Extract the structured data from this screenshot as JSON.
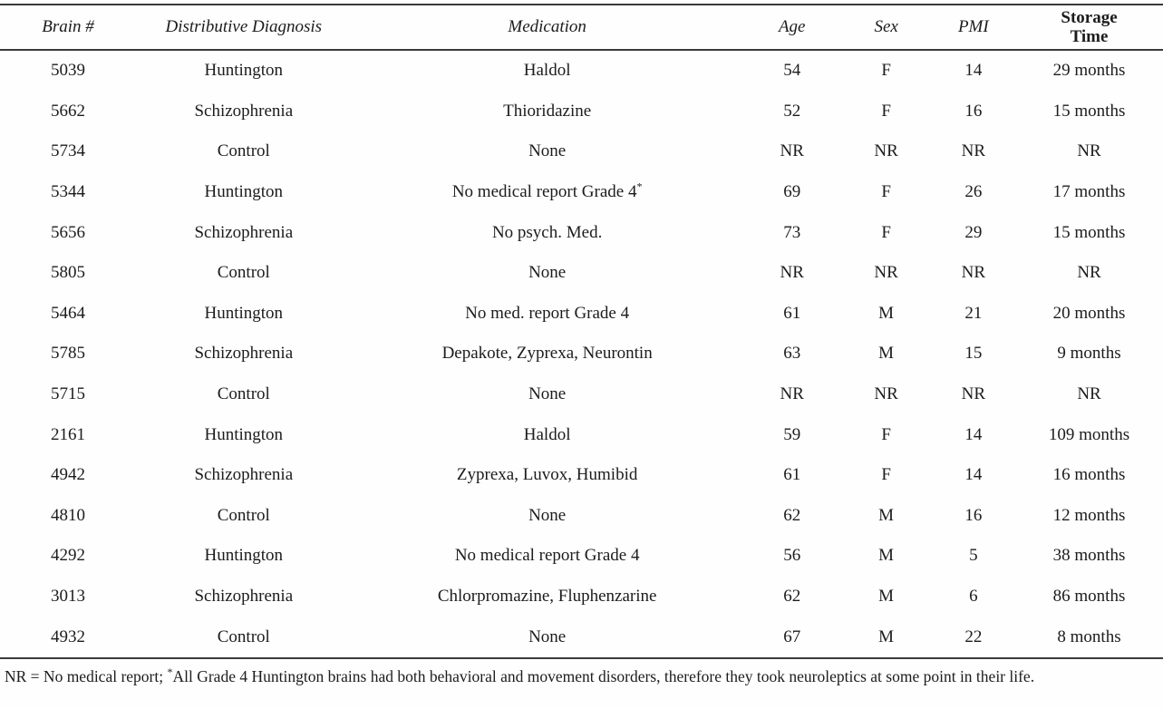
{
  "table": {
    "columns": [
      {
        "key": "brain",
        "label": "Brain #",
        "style": "italic"
      },
      {
        "key": "diagnosis",
        "label": "Distributive Diagnosis",
        "style": "italic"
      },
      {
        "key": "medication",
        "label": "Medication",
        "style": "italic"
      },
      {
        "key": "age",
        "label": "Age",
        "style": "italic"
      },
      {
        "key": "sex",
        "label": "Sex",
        "style": "italic"
      },
      {
        "key": "pmi",
        "label": "PMI",
        "style": "italic"
      },
      {
        "key": "storage",
        "label": "Storage Time",
        "style": "bold"
      }
    ],
    "rows": [
      {
        "brain": "5039",
        "diagnosis": "Huntington",
        "medication": "Haldol",
        "medication_sup": "",
        "age": "54",
        "sex": "F",
        "pmi": "14",
        "storage": "29 months"
      },
      {
        "brain": "5662",
        "diagnosis": "Schizophrenia",
        "medication": "Thioridazine",
        "medication_sup": "",
        "age": "52",
        "sex": "F",
        "pmi": "16",
        "storage": "15 months"
      },
      {
        "brain": "5734",
        "diagnosis": "Control",
        "medication": "None",
        "medication_sup": "",
        "age": "NR",
        "sex": "NR",
        "pmi": "NR",
        "storage": "NR"
      },
      {
        "brain": "5344",
        "diagnosis": "Huntington",
        "medication": "No medical report Grade 4",
        "medication_sup": "*",
        "age": "69",
        "sex": "F",
        "pmi": "26",
        "storage": "17 months"
      },
      {
        "brain": "5656",
        "diagnosis": "Schizophrenia",
        "medication": "No psych. Med.",
        "medication_sup": "",
        "age": "73",
        "sex": "F",
        "pmi": "29",
        "storage": "15 months"
      },
      {
        "brain": "5805",
        "diagnosis": "Control",
        "medication": "None",
        "medication_sup": "",
        "age": "NR",
        "sex": "NR",
        "pmi": "NR",
        "storage": "NR"
      },
      {
        "brain": "5464",
        "diagnosis": "Huntington",
        "medication": "No med. report Grade 4",
        "medication_sup": "",
        "age": "61",
        "sex": "M",
        "pmi": "21",
        "storage": "20 months"
      },
      {
        "brain": "5785",
        "diagnosis": "Schizophrenia",
        "medication": "Depakote, Zyprexa, Neurontin",
        "medication_sup": "",
        "age": "63",
        "sex": "M",
        "pmi": "15",
        "storage": "9 months"
      },
      {
        "brain": "5715",
        "diagnosis": "Control",
        "medication": "None",
        "medication_sup": "",
        "age": "NR",
        "sex": "NR",
        "pmi": "NR",
        "storage": "NR"
      },
      {
        "brain": "2161",
        "diagnosis": "Huntington",
        "medication": "Haldol",
        "medication_sup": "",
        "age": "59",
        "sex": "F",
        "pmi": "14",
        "storage": "109 months"
      },
      {
        "brain": "4942",
        "diagnosis": "Schizophrenia",
        "medication": "Zyprexa, Luvox, Humibid",
        "medication_sup": "",
        "age": "61",
        "sex": "F",
        "pmi": "14",
        "storage": "16 months"
      },
      {
        "brain": "4810",
        "diagnosis": "Control",
        "medication": "None",
        "medication_sup": "",
        "age": "62",
        "sex": "M",
        "pmi": "16",
        "storage": "12 months"
      },
      {
        "brain": "4292",
        "diagnosis": "Huntington",
        "medication": "No medical report Grade 4",
        "medication_sup": "",
        "age": "56",
        "sex": "M",
        "pmi": "5",
        "storage": "38 months"
      },
      {
        "brain": "3013",
        "diagnosis": "Schizophrenia",
        "medication": "Chlorpromazine, Fluphenzarine",
        "medication_sup": "",
        "age": "62",
        "sex": "M",
        "pmi": "6",
        "storage": "86 months"
      },
      {
        "brain": "4932",
        "diagnosis": "Control",
        "medication": "None",
        "medication_sup": "",
        "age": "67",
        "sex": "M",
        "pmi": "22",
        "storage": "8 months"
      }
    ]
  },
  "footnote": {
    "prefix": "NR = No medical report; ",
    "sup_marker": "*",
    "text": "All Grade 4 Huntington brains had both behavioral and movement disorders, therefore they took neuroleptics at some point in their life."
  },
  "colors": {
    "text": "#1c1c1c",
    "rule": "#3a3a3a",
    "background": "#fefefe"
  }
}
